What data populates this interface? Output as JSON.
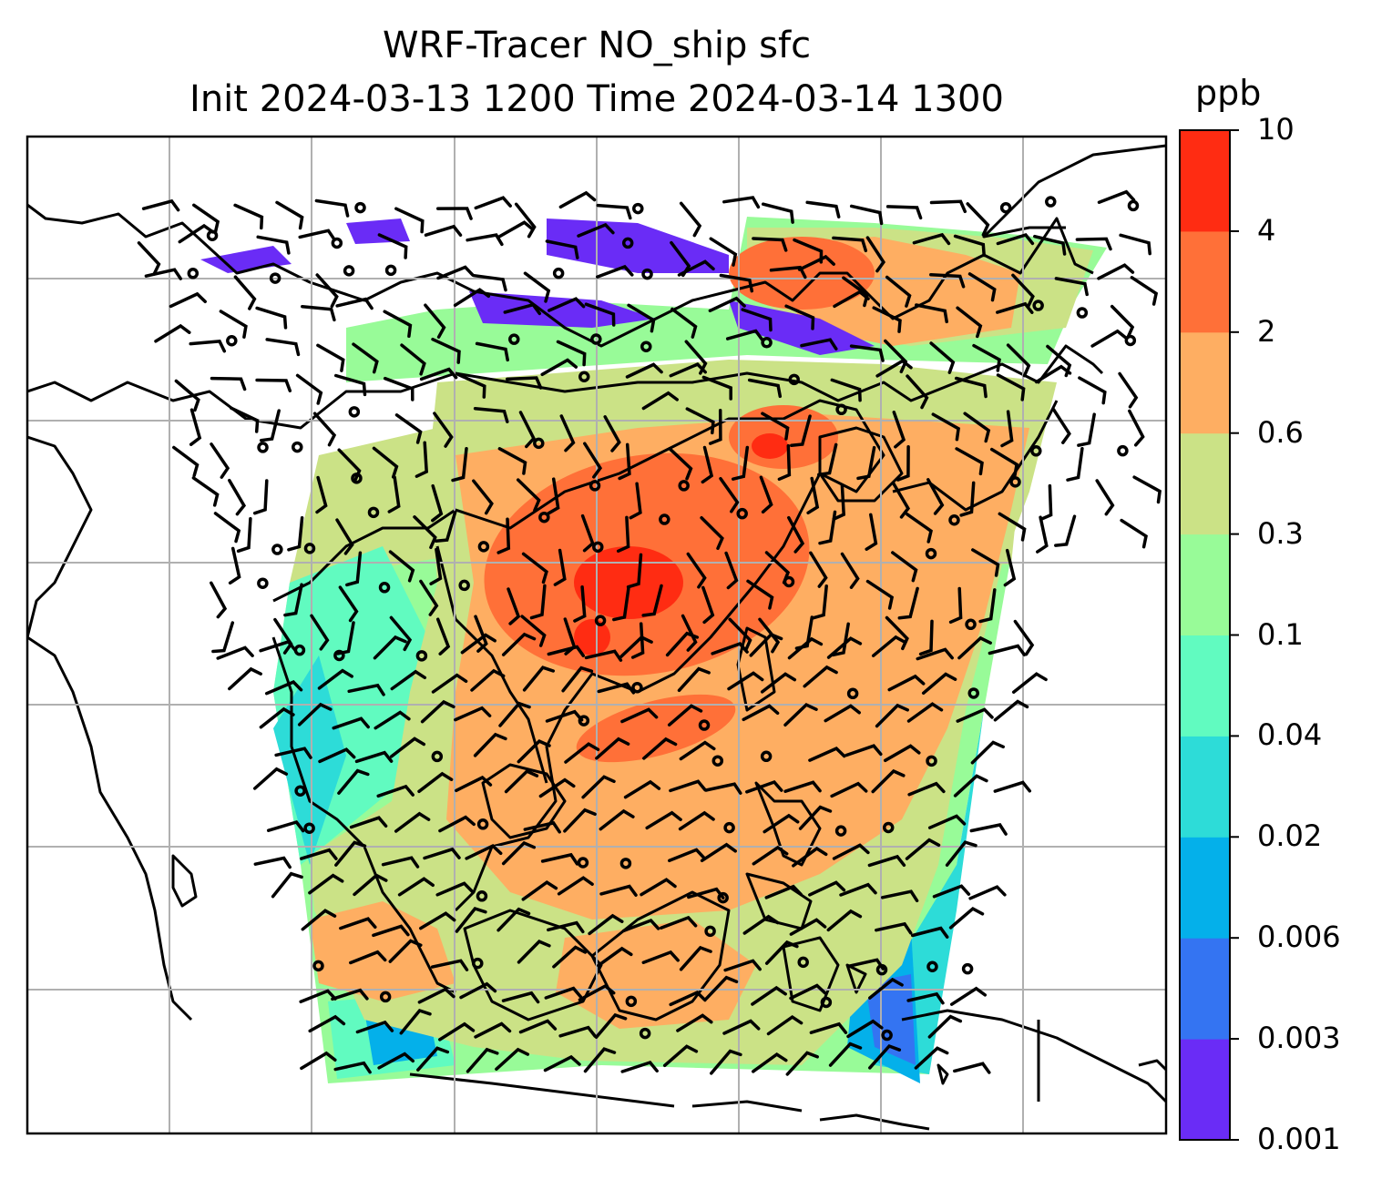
{
  "chart_data": {
    "type": "heatmap",
    "title": "WRF-Tracer NO_ship sfc",
    "subtitle": "Init 2024-03-13 1200 Time 2024-03-14 1300",
    "colorbar": {
      "unit": "ppb",
      "levels": [
        "0.001",
        "0.003",
        "0.006",
        "0.02",
        "0.04",
        "0.1",
        "0.3",
        "0.6",
        "2",
        "4",
        "10"
      ],
      "colors": [
        "#6a2cf6",
        "#3474f2",
        "#04b0ea",
        "#2ddcd8",
        "#61fbc0",
        "#98fb98",
        "#cbe286",
        "#feae62",
        "#ff7038",
        "#ff2c12"
      ]
    },
    "grid": true,
    "overlays": [
      "coastlines",
      "wind-barbs",
      "calm-circles"
    ]
  }
}
